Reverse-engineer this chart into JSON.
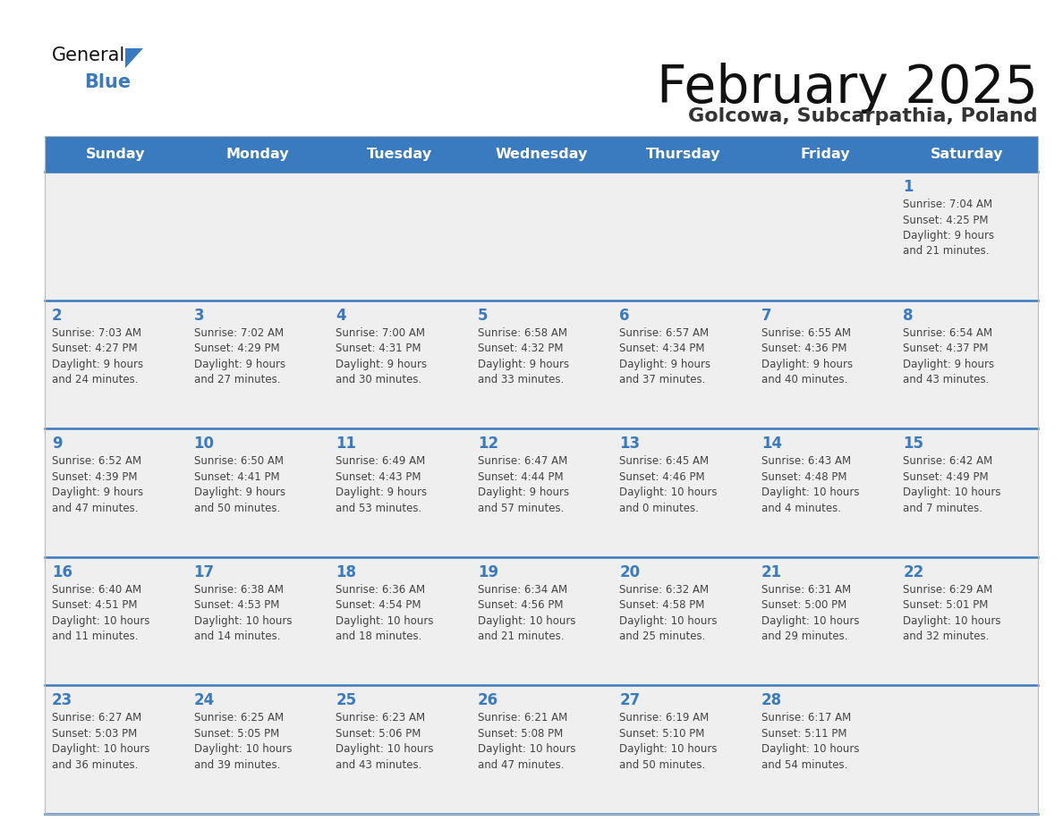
{
  "title": "February 2025",
  "subtitle": "Golcowa, Subcarpathia, Poland",
  "header_color": "#3a7abf",
  "header_text_color": "#ffffff",
  "title_color": "#111111",
  "subtitle_color": "#333333",
  "day_number_color": "#3a7abf",
  "cell_text_color": "#444444",
  "cell_bg_even": "#f0f0f0",
  "cell_bg_odd": "#f0f0f0",
  "separator_color": "#3a7abf",
  "logo_general_color": "#111111",
  "logo_blue_color": "#3a7abf",
  "logo_triangle_color": "#3a7abf",
  "days_of_week": [
    "Sunday",
    "Monday",
    "Tuesday",
    "Wednesday",
    "Thursday",
    "Friday",
    "Saturday"
  ],
  "calendar": [
    [
      null,
      null,
      null,
      null,
      null,
      null,
      {
        "day": 1,
        "sunrise": "7:04 AM",
        "sunset": "4:25 PM",
        "daylight_h": "9 hours",
        "daylight_m": "and 21 minutes."
      }
    ],
    [
      {
        "day": 2,
        "sunrise": "7:03 AM",
        "sunset": "4:27 PM",
        "daylight_h": "9 hours",
        "daylight_m": "and 24 minutes."
      },
      {
        "day": 3,
        "sunrise": "7:02 AM",
        "sunset": "4:29 PM",
        "daylight_h": "9 hours",
        "daylight_m": "and 27 minutes."
      },
      {
        "day": 4,
        "sunrise": "7:00 AM",
        "sunset": "4:31 PM",
        "daylight_h": "9 hours",
        "daylight_m": "and 30 minutes."
      },
      {
        "day": 5,
        "sunrise": "6:58 AM",
        "sunset": "4:32 PM",
        "daylight_h": "9 hours",
        "daylight_m": "and 33 minutes."
      },
      {
        "day": 6,
        "sunrise": "6:57 AM",
        "sunset": "4:34 PM",
        "daylight_h": "9 hours",
        "daylight_m": "and 37 minutes."
      },
      {
        "day": 7,
        "sunrise": "6:55 AM",
        "sunset": "4:36 PM",
        "daylight_h": "9 hours",
        "daylight_m": "and 40 minutes."
      },
      {
        "day": 8,
        "sunrise": "6:54 AM",
        "sunset": "4:37 PM",
        "daylight_h": "9 hours",
        "daylight_m": "and 43 minutes."
      }
    ],
    [
      {
        "day": 9,
        "sunrise": "6:52 AM",
        "sunset": "4:39 PM",
        "daylight_h": "9 hours",
        "daylight_m": "and 47 minutes."
      },
      {
        "day": 10,
        "sunrise": "6:50 AM",
        "sunset": "4:41 PM",
        "daylight_h": "9 hours",
        "daylight_m": "and 50 minutes."
      },
      {
        "day": 11,
        "sunrise": "6:49 AM",
        "sunset": "4:43 PM",
        "daylight_h": "9 hours",
        "daylight_m": "and 53 minutes."
      },
      {
        "day": 12,
        "sunrise": "6:47 AM",
        "sunset": "4:44 PM",
        "daylight_h": "9 hours",
        "daylight_m": "and 57 minutes."
      },
      {
        "day": 13,
        "sunrise": "6:45 AM",
        "sunset": "4:46 PM",
        "daylight_h": "10 hours",
        "daylight_m": "and 0 minutes."
      },
      {
        "day": 14,
        "sunrise": "6:43 AM",
        "sunset": "4:48 PM",
        "daylight_h": "10 hours",
        "daylight_m": "and 4 minutes."
      },
      {
        "day": 15,
        "sunrise": "6:42 AM",
        "sunset": "4:49 PM",
        "daylight_h": "10 hours",
        "daylight_m": "and 7 minutes."
      }
    ],
    [
      {
        "day": 16,
        "sunrise": "6:40 AM",
        "sunset": "4:51 PM",
        "daylight_h": "10 hours",
        "daylight_m": "and 11 minutes."
      },
      {
        "day": 17,
        "sunrise": "6:38 AM",
        "sunset": "4:53 PM",
        "daylight_h": "10 hours",
        "daylight_m": "and 14 minutes."
      },
      {
        "day": 18,
        "sunrise": "6:36 AM",
        "sunset": "4:54 PM",
        "daylight_h": "10 hours",
        "daylight_m": "and 18 minutes."
      },
      {
        "day": 19,
        "sunrise": "6:34 AM",
        "sunset": "4:56 PM",
        "daylight_h": "10 hours",
        "daylight_m": "and 21 minutes."
      },
      {
        "day": 20,
        "sunrise": "6:32 AM",
        "sunset": "4:58 PM",
        "daylight_h": "10 hours",
        "daylight_m": "and 25 minutes."
      },
      {
        "day": 21,
        "sunrise": "6:31 AM",
        "sunset": "5:00 PM",
        "daylight_h": "10 hours",
        "daylight_m": "and 29 minutes."
      },
      {
        "day": 22,
        "sunrise": "6:29 AM",
        "sunset": "5:01 PM",
        "daylight_h": "10 hours",
        "daylight_m": "and 32 minutes."
      }
    ],
    [
      {
        "day": 23,
        "sunrise": "6:27 AM",
        "sunset": "5:03 PM",
        "daylight_h": "10 hours",
        "daylight_m": "and 36 minutes."
      },
      {
        "day": 24,
        "sunrise": "6:25 AM",
        "sunset": "5:05 PM",
        "daylight_h": "10 hours",
        "daylight_m": "and 39 minutes."
      },
      {
        "day": 25,
        "sunrise": "6:23 AM",
        "sunset": "5:06 PM",
        "daylight_h": "10 hours",
        "daylight_m": "and 43 minutes."
      },
      {
        "day": 26,
        "sunrise": "6:21 AM",
        "sunset": "5:08 PM",
        "daylight_h": "10 hours",
        "daylight_m": "and 47 minutes."
      },
      {
        "day": 27,
        "sunrise": "6:19 AM",
        "sunset": "5:10 PM",
        "daylight_h": "10 hours",
        "daylight_m": "and 50 minutes."
      },
      {
        "day": 28,
        "sunrise": "6:17 AM",
        "sunset": "5:11 PM",
        "daylight_h": "10 hours",
        "daylight_m": "and 54 minutes."
      },
      null
    ]
  ]
}
